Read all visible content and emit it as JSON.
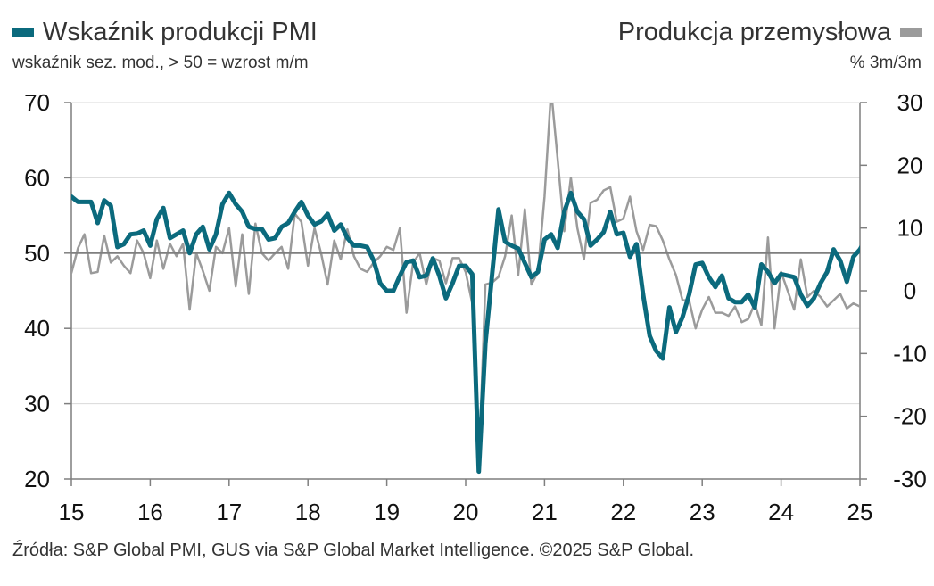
{
  "legend": {
    "left_title": "Wskaźnik produkcji PMI",
    "left_subtitle": "wskaźnik sez. mod., > 50 = wzrost m/m",
    "right_title": "Produkcja przemysłowa",
    "right_subtitle": "% 3m/3m"
  },
  "source": "Źródła: S&P Global PMI, GUS via S&P Global Market Intelligence. ©2025 S&P Global.",
  "colors": {
    "pmi": "#0b6a7d",
    "ip": "#9b9b9b",
    "axis": "#7f7f7f",
    "grid": "#d9d9d9",
    "refline": "#7f7f7f"
  },
  "chart_data": {
    "type": "line",
    "x_start": "2015-01",
    "x_frequency": "monthly",
    "x_ticks": [
      "15",
      "16",
      "17",
      "18",
      "19",
      "20",
      "21",
      "22",
      "23",
      "24",
      "25"
    ],
    "y_left": {
      "label": "",
      "ylim": [
        20,
        70
      ],
      "ticks": [
        "70",
        "60",
        "50",
        "40",
        "30",
        "20"
      ]
    },
    "y_right": {
      "label": "",
      "ylim": [
        -30,
        30
      ],
      "ticks": [
        "30",
        "20",
        "10",
        "0",
        "-10",
        "-20",
        "-30"
      ]
    },
    "reference_line": {
      "axis": "left",
      "value": 50
    },
    "series": [
      {
        "name": "Wskaźnik produkcji PMI",
        "axis": "left",
        "values": [
          57.5,
          56.8,
          56.8,
          56.8,
          54.0,
          57.0,
          56.3,
          50.8,
          51.2,
          52.5,
          52.6,
          53.0,
          51.0,
          54.5,
          56.0,
          52.0,
          52.5,
          53.0,
          50.0,
          52.5,
          53.5,
          50.5,
          52.5,
          56.5,
          58.0,
          56.5,
          55.5,
          53.5,
          53.2,
          53.2,
          51.8,
          52.0,
          53.5,
          54.0,
          55.5,
          56.8,
          55.0,
          53.8,
          54.2,
          55.2,
          53.0,
          53.8,
          52.0,
          51.0,
          51.0,
          50.8,
          49.0,
          46.0,
          45.0,
          45.0,
          47.0,
          48.8,
          49.0,
          46.8,
          47.0,
          49.3,
          47.0,
          44.0,
          46.0,
          48.3,
          48.3,
          47.2,
          21.0,
          38.0,
          47.0,
          55.8,
          51.5,
          51.0,
          50.6,
          48.7,
          46.8,
          47.5,
          51.8,
          52.5,
          50.7,
          55.5,
          58.0,
          55.5,
          54.5,
          51.0,
          51.8,
          52.8,
          55.5,
          52.5,
          52.7,
          49.5,
          51.2,
          44.5,
          39.0,
          37.0,
          36.0,
          42.8,
          39.5,
          41.5,
          44.5,
          48.5,
          48.7,
          46.8,
          45.5,
          47.0,
          44.0,
          43.5,
          43.5,
          44.5,
          42.8,
          48.5,
          47.5,
          46.0,
          47.2,
          47.0,
          46.8,
          44.5,
          43.0,
          44.0,
          46.0,
          47.5,
          50.5,
          49.0,
          46.2,
          49.5,
          50.5,
          52.0
        ]
      },
      {
        "name": "Produkcja przemysłowa",
        "axis": "right",
        "values": [
          2.8,
          6.8,
          9.0,
          2.8,
          3.0,
          8.8,
          4.5,
          5.5,
          4.0,
          2.8,
          8.0,
          6.0,
          2.0,
          8.0,
          3.5,
          7.5,
          5.5,
          7.5,
          -3.0,
          6.0,
          3.2,
          0.0,
          7.0,
          6.0,
          10.0,
          0.7,
          9.0,
          -0.5,
          10.7,
          6.0,
          4.8,
          6.0,
          7.0,
          3.5,
          12.3,
          11.0,
          4.0,
          10.0,
          6.0,
          1.0,
          8.0,
          5.0,
          9.8,
          5.5,
          3.5,
          3.0,
          4.5,
          5.5,
          7.0,
          6.5,
          10.0,
          -3.5,
          4.5,
          6.0,
          1.0,
          5.2,
          4.8,
          1.2,
          5.2,
          5.2,
          3.0,
          -2.0,
          -28.5,
          1.0,
          1.3,
          2.2,
          5.5,
          12.0,
          2.5,
          13.0,
          1.0,
          3.0,
          15.0,
          32.0,
          21.0,
          9.5,
          18.0,
          10.0,
          5.0,
          14.0,
          14.5,
          16.0,
          16.5,
          11.0,
          11.5,
          15.0,
          9.5,
          6.5,
          10.5,
          10.3,
          8.0,
          5.0,
          2.5,
          -1.5,
          -1.5,
          -6.0,
          -3.0,
          -1.0,
          -3.5,
          -3.5,
          -4.0,
          -2.5,
          -5.0,
          -4.5,
          -2.0,
          -5.5,
          8.5,
          -6.0,
          3.0,
          0.0,
          -3.0,
          5.0,
          -1.0,
          0.0,
          -1.0,
          -2.5,
          -1.5,
          -0.5,
          -2.8,
          -2.0,
          -2.5,
          -4.0
        ]
      }
    ]
  }
}
